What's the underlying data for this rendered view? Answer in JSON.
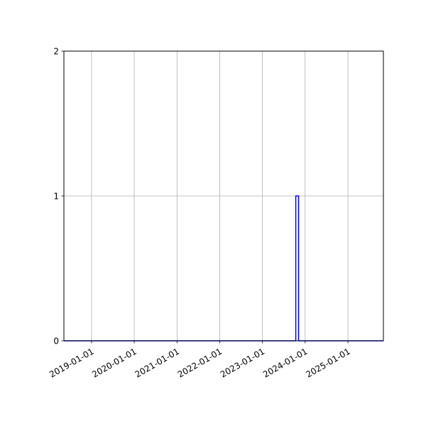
{
  "chart_data": {
    "type": "histogram-step",
    "title": "",
    "xlabel": "",
    "ylabel": "",
    "x_axis_type": "date",
    "xlim": [
      "2018-05-10",
      "2025-10-31"
    ],
    "ylim": [
      0,
      2
    ],
    "x_ticks": [
      "2019-01-01",
      "2020-01-01",
      "2021-01-01",
      "2022-01-01",
      "2023-01-01",
      "2024-01-01",
      "2025-01-01"
    ],
    "y_ticks": [
      "0",
      "1",
      "2"
    ],
    "grid": true,
    "series": [
      {
        "color": "#0000ff",
        "bins": [
          {
            "start": "2018-05-10",
            "end": "2023-10-13",
            "count": 0
          },
          {
            "start": "2023-10-13",
            "end": "2023-11-06",
            "count": 1
          },
          {
            "start": "2023-11-06",
            "end": "2025-10-31",
            "count": 0
          }
        ]
      }
    ]
  }
}
